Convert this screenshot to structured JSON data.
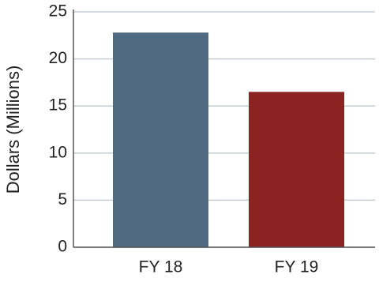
{
  "chart_data": {
    "type": "bar",
    "y_label": "Dollars (Millions)",
    "categories": [
      "FY 18",
      "FY 19"
    ],
    "values": [
      22.8,
      16.5
    ],
    "colors": [
      "#4f6a80",
      "#8b2323"
    ],
    "ylim": [
      0,
      25
    ],
    "yticks": [
      0,
      5,
      10,
      15,
      20,
      25
    ],
    "grid": true
  }
}
